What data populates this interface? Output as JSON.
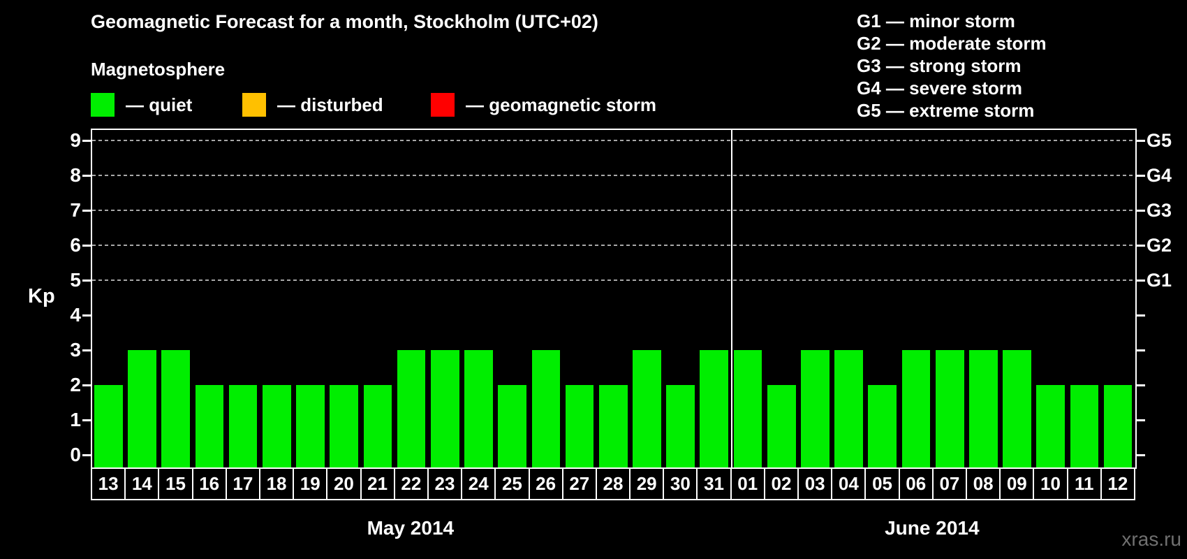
{
  "title": "Geomagnetic Forecast for a month, Stockholm (UTC+02)",
  "subtitle": "Magnetosphere",
  "legend": {
    "items": [
      {
        "label": "— quiet",
        "color": "#00ee00"
      },
      {
        "label": "— disturbed",
        "color": "#ffc000"
      },
      {
        "label": "— geomagnetic storm",
        "color": "#ff0000"
      }
    ]
  },
  "g_legend": [
    "G1 — minor storm",
    "G2 — moderate storm",
    "G3 — strong storm",
    "G4 — severe storm",
    "G5 — extreme storm"
  ],
  "watermark": "xras.ru",
  "chart_data": {
    "type": "bar",
    "title": "Geomagnetic Forecast for a month, Stockholm (UTC+02)",
    "ylabel": "Kp",
    "ylim": [
      0,
      9
    ],
    "y_ticks": [
      0,
      1,
      2,
      3,
      4,
      5,
      6,
      7,
      8,
      9
    ],
    "gridlines_at": [
      5,
      6,
      7,
      8,
      9
    ],
    "grid": "dashed horizontal at Kp 5-9",
    "legend_position": "top",
    "bar_color": "#00ee00",
    "categories": [
      "13",
      "14",
      "15",
      "16",
      "17",
      "18",
      "19",
      "20",
      "21",
      "22",
      "23",
      "24",
      "25",
      "26",
      "27",
      "28",
      "29",
      "30",
      "31",
      "01",
      "02",
      "03",
      "04",
      "05",
      "06",
      "07",
      "08",
      "09",
      "10",
      "11",
      "12"
    ],
    "values": [
      2,
      3,
      3,
      2,
      2,
      2,
      2,
      2,
      2,
      3,
      3,
      3,
      2,
      3,
      2,
      2,
      3,
      2,
      3,
      3,
      2,
      3,
      3,
      2,
      3,
      3,
      3,
      3,
      2,
      2,
      2
    ],
    "months": [
      {
        "label": "May 2014",
        "count": 19
      },
      {
        "label": "June 2014",
        "count": 12
      }
    ],
    "right_axis": [
      {
        "label": "G1",
        "kp": 5
      },
      {
        "label": "G2",
        "kp": 6
      },
      {
        "label": "G3",
        "kp": 7
      },
      {
        "label": "G4",
        "kp": 8
      },
      {
        "label": "G5",
        "kp": 9
      }
    ]
  }
}
